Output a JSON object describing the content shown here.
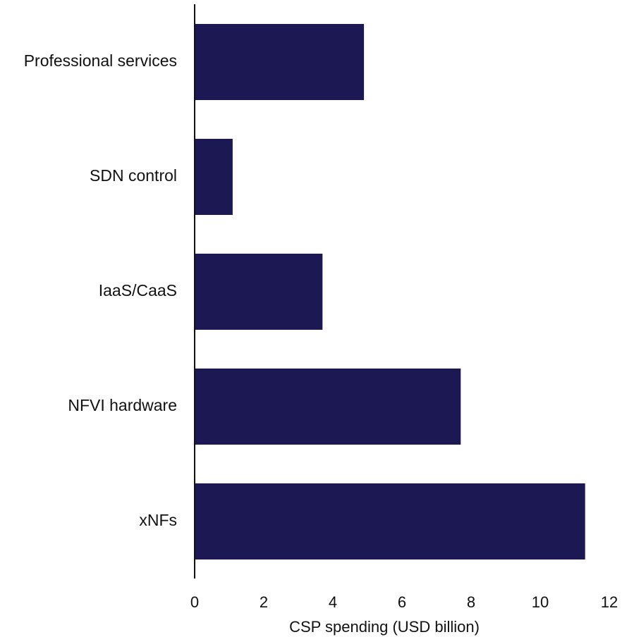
{
  "chart_data": {
    "type": "bar",
    "orientation": "horizontal",
    "categories": [
      "Professional services",
      "SDN control",
      "IaaS/CaaS",
      "NFVI hardware",
      "xNFs"
    ],
    "values": [
      4.9,
      1.1,
      3.7,
      7.7,
      11.3
    ],
    "title": "",
    "xlabel": "CSP spending (USD billion)",
    "ylabel": "",
    "xlim": [
      0,
      12
    ],
    "xticks": [
      0,
      2,
      4,
      6,
      8,
      10,
      12
    ],
    "grid": false,
    "legend": "none",
    "bar_color": "#1b1854",
    "axis_color": "#111111"
  }
}
